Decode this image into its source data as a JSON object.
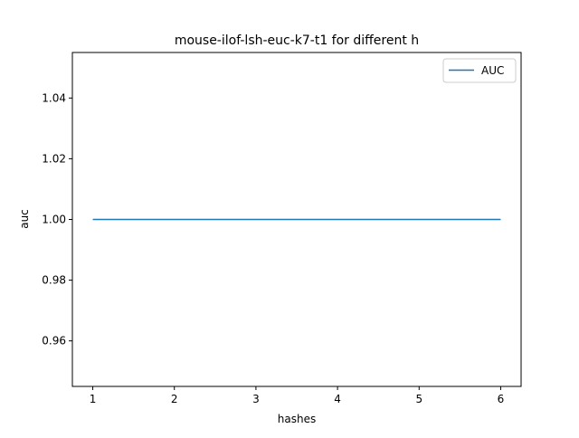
{
  "chart_data": {
    "type": "line",
    "title": "mouse-ilof-lsh-euc-k7-t1 for different h",
    "xlabel": "hashes",
    "ylabel": "auc",
    "x": [
      1,
      2,
      3,
      4,
      5,
      6
    ],
    "series": [
      {
        "name": "AUC",
        "values": [
          1.0,
          1.0,
          1.0,
          1.0,
          1.0,
          1.0
        ],
        "color": "#1f77b4"
      }
    ],
    "xlim": [
      0.75,
      6.25
    ],
    "ylim": [
      0.945,
      1.055
    ],
    "xticks": [
      1,
      2,
      3,
      4,
      5,
      6
    ],
    "xtick_labels": [
      "1",
      "2",
      "3",
      "4",
      "5",
      "6"
    ],
    "yticks": [
      0.96,
      0.98,
      1.0,
      1.02,
      1.04
    ],
    "ytick_labels": [
      "0.96",
      "0.98",
      "1.00",
      "1.02",
      "1.04"
    ],
    "grid": false,
    "legend_position": "top-right"
  }
}
